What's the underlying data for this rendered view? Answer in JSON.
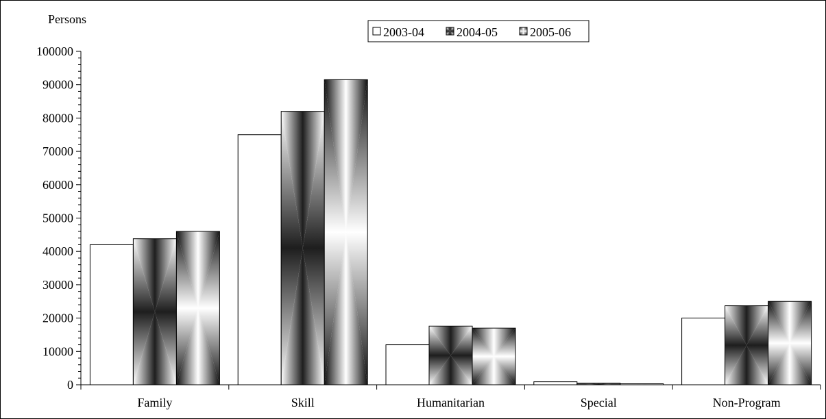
{
  "chart_data": {
    "type": "bar",
    "ylabel": "Persons",
    "xlabel": "",
    "title": "",
    "ylim": [
      0,
      100000
    ],
    "y_ticks": [
      "0",
      "10000",
      "20000",
      "30000",
      "40000",
      "50000",
      "60000",
      "70000",
      "80000",
      "90000",
      "100000"
    ],
    "categories": [
      "Family",
      "Skill",
      "Humanitarian",
      "Special",
      "Non-Program"
    ],
    "series": [
      {
        "name": "2003-04",
        "values": [
          42000,
          75000,
          12000,
          900,
          20000
        ]
      },
      {
        "name": "2004-05",
        "values": [
          43800,
          82000,
          17600,
          500,
          23700
        ]
      },
      {
        "name": "2005-06",
        "values": [
          46000,
          91500,
          17000,
          300,
          25000
        ]
      }
    ],
    "grid": false,
    "legend_position": "top-center"
  }
}
